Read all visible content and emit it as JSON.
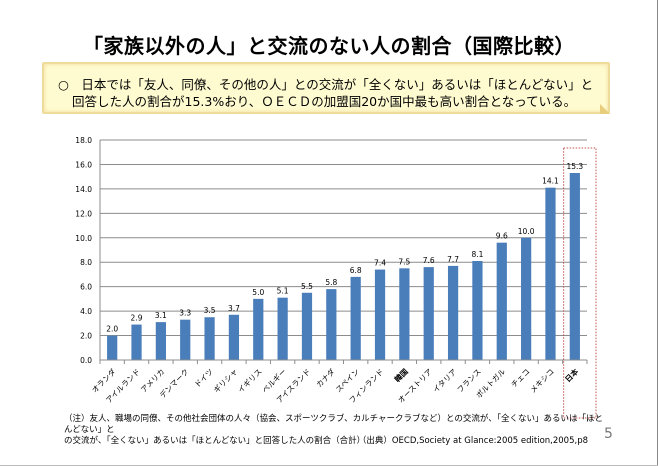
{
  "slide": {
    "title": "「家族以外の人」と交流のない人の割合（国際比較）",
    "summary": {
      "line1": "○　日本では「友人、同僚、その他の人」との交流が「全くない」あるいは「ほとんどない」と",
      "line2": "回答した人の割合が15.3%おり、ＯＥＣＤの加盟国20か国中最も高い割合となっている。"
    },
    "footnote": {
      "line1": "（注）友人、職場の同僚、その他社会団体の人々（協会、スポーツクラブ、カルチャークラブなど）との交流が、「全くない」あるいは「ほとんどない」と",
      "line2": "の交流が、「全くない」あるいは「ほとんどない」と回答した人の割合（合計）"
    },
    "source": "（出典）OECD,Society at Glance:2005 edition,2005,p8",
    "page_number": "5"
  },
  "chart_data": {
    "type": "bar",
    "title": "",
    "xlabel": "",
    "ylabel": "",
    "ylim": [
      0,
      18
    ],
    "yticks": [
      "0.0",
      "2.0",
      "4.0",
      "6.0",
      "8.0",
      "10.0",
      "12.0",
      "14.0",
      "16.0",
      "18.0"
    ],
    "grid": true,
    "categories": [
      "オランダ",
      "アイルランド",
      "アメリカ",
      "デンマーク",
      "ドイツ",
      "ギリシャ",
      "イギリス",
      "ベルギー",
      "アイスランド",
      "カナダ",
      "スペイン",
      "フィンランド",
      "韓国",
      "オーストリア",
      "イタリア",
      "フランス",
      "ポルトガル",
      "チェコ",
      "メキシコ",
      "日本"
    ],
    "values": [
      2.0,
      2.9,
      3.1,
      3.3,
      3.5,
      3.7,
      5.0,
      5.1,
      5.5,
      5.8,
      6.8,
      7.4,
      7.5,
      7.6,
      7.7,
      8.1,
      9.6,
      10.0,
      14.1,
      15.3
    ],
    "data_labels": [
      "2.0",
      "2.9",
      "3.1",
      "3.3",
      "3.5",
      "3.7",
      "5.0",
      "5.1",
      "5.5",
      "5.8",
      "6.8",
      "7.4",
      "7.5",
      "7.6",
      "7.7",
      "8.1",
      "9.6",
      "10.0",
      "14.1",
      "15.3"
    ],
    "bold_categories": [
      "韓国",
      "日本"
    ],
    "highlighted_category": "日本",
    "colors": {
      "bar": "#4a7ebb",
      "grid": "#8c8c8c",
      "highlight_box": "#c0504d"
    }
  }
}
